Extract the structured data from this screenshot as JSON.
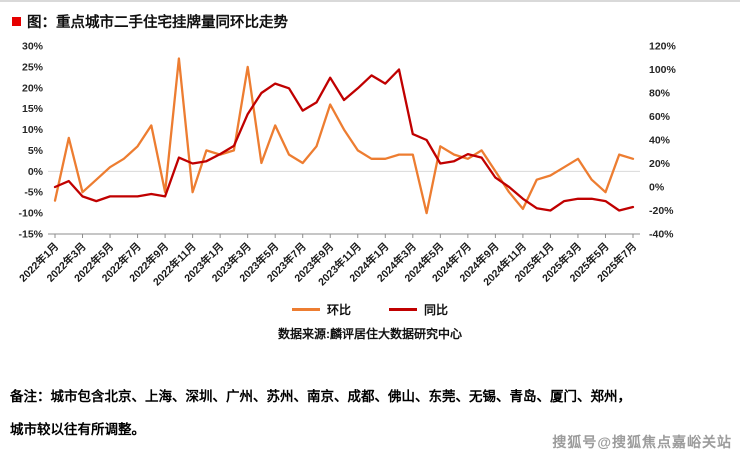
{
  "title": "图：重点城市二手住宅挂牌量同环比走势",
  "source": "数据来源:麟评居住大数据研究中心",
  "notes": {
    "line1": "备注：城市包含北京、上海、深圳、广州、苏州、南京、成都、佛山、东莞、无锡、青岛、厦门、郑州，",
    "line2": "城市较以往有所调整。"
  },
  "watermark": "搜狐号@搜狐焦点嘉峪关站",
  "colors": {
    "huanbi": "#ED7D31",
    "tongbi": "#C00000",
    "title_bullet": "#E60000"
  },
  "chart_data": {
    "type": "line",
    "title": "重点城市二手住宅挂牌量同环比走势",
    "label_interval": 2,
    "x": [
      "2022年1月",
      "2022年2月",
      "2022年3月",
      "2022年4月",
      "2022年5月",
      "2022年6月",
      "2022年7月",
      "2022年8月",
      "2022年9月",
      "2022年10月",
      "2022年11月",
      "2022年12月",
      "2023年1月",
      "2023年2月",
      "2023年3月",
      "2023年4月",
      "2023年5月",
      "2023年6月",
      "2023年7月",
      "2023年8月",
      "2023年9月",
      "2023年10月",
      "2023年11月",
      "2023年12月",
      "2024年1月",
      "2024年2月",
      "2024年3月",
      "2024年4月",
      "2024年5月",
      "2024年6月",
      "2024年7月",
      "2024年8月",
      "2024年9月",
      "2024年10月",
      "2024年11月",
      "2024年12月",
      "2025年1月",
      "2025年2月",
      "2025年3月",
      "2025年4月",
      "2025年5月",
      "2025年6月",
      "2025年7月"
    ],
    "series": [
      {
        "name": "环比",
        "axis": "left",
        "color": "#ED7D31",
        "values": [
          -7,
          8,
          -5,
          -2,
          1,
          3,
          6,
          11,
          -5,
          27,
          -5,
          5,
          4,
          5,
          25,
          2,
          11,
          4,
          2,
          6,
          16,
          10,
          5,
          3,
          3,
          4,
          4,
          -10,
          6,
          4,
          3,
          5,
          0,
          -5,
          -9,
          -2,
          -1,
          1,
          3,
          -2,
          -5,
          4,
          3
        ]
      },
      {
        "name": "同比",
        "axis": "right",
        "color": "#C00000",
        "values": [
          0,
          5,
          -8,
          -12,
          -8,
          -8,
          -8,
          -6,
          -8,
          25,
          20,
          22,
          28,
          35,
          62,
          80,
          88,
          84,
          65,
          72,
          93,
          74,
          84,
          95,
          88,
          100,
          45,
          40,
          20,
          22,
          28,
          25,
          8,
          0,
          -10,
          -18,
          -20,
          -12,
          -10,
          -10,
          -12,
          -20,
          -17
        ]
      }
    ],
    "left_axis": {
      "min": -15,
      "max": 30,
      "step": 5,
      "format": "percent"
    },
    "right_axis": {
      "min": -40,
      "max": 120,
      "step": 20,
      "format": "percent"
    },
    "grid": "zero-line-only",
    "legend_position": "bottom"
  }
}
